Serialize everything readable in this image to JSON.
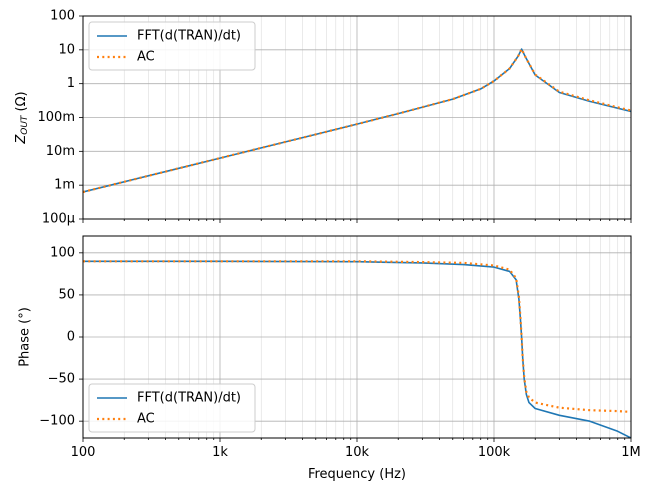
{
  "chart_data": [
    {
      "type": "line",
      "title": "",
      "xlabel": "",
      "ylabel_base": "Z",
      "ylabel_sub": "OUT",
      "ylabel_unit": " (Ω)",
      "xscale": "log",
      "yscale": "log",
      "xlim": [
        100,
        1000000
      ],
      "ylim": [
        0.0001,
        100
      ],
      "yticks": [
        0.0001,
        0.001,
        0.01,
        0.1,
        1,
        10,
        100
      ],
      "ytick_labels": [
        "100µ",
        "1m",
        "10m",
        "100m",
        "1",
        "10",
        "100"
      ],
      "grid": true,
      "legend_position": "upper-left",
      "series": [
        {
          "name": "FFT(d(TRAN)/dt)",
          "color": "#1f77b4",
          "style": "solid",
          "x": [
            100,
            200,
            500,
            1000,
            2000,
            5000,
            10000,
            20000,
            50000,
            80000,
            100000,
            130000,
            150000,
            159000,
            170000,
            200000,
            300000,
            500000,
            1000000
          ],
          "y": [
            0.00063,
            0.00126,
            0.00315,
            0.0063,
            0.0126,
            0.0316,
            0.064,
            0.13,
            0.35,
            0.7,
            1.2,
            2.8,
            6.5,
            10.5,
            6.0,
            1.8,
            0.55,
            0.3,
            0.15
          ]
        },
        {
          "name": "AC",
          "color": "#ff7f0e",
          "style": "dotted",
          "x": [
            100,
            200,
            500,
            1000,
            2000,
            5000,
            10000,
            20000,
            50000,
            80000,
            100000,
            130000,
            150000,
            159000,
            170000,
            200000,
            300000,
            500000,
            1000000
          ],
          "y": [
            0.00063,
            0.00126,
            0.00315,
            0.0063,
            0.0126,
            0.0316,
            0.064,
            0.13,
            0.35,
            0.7,
            1.2,
            2.8,
            6.5,
            10.5,
            6.0,
            1.85,
            0.58,
            0.32,
            0.16
          ]
        }
      ]
    },
    {
      "type": "line",
      "title": "",
      "xlabel": "Frequency (Hz)",
      "ylabel": "Phase (°)",
      "xscale": "log",
      "yscale": "linear",
      "xlim": [
        100,
        1000000
      ],
      "ylim": [
        -120,
        120
      ],
      "xticks": [
        100,
        1000,
        10000,
        100000,
        1000000
      ],
      "xtick_labels": [
        "100",
        "1k",
        "10k",
        "100k",
        "1M"
      ],
      "yticks": [
        -100,
        -50,
        0,
        50,
        100
      ],
      "ytick_labels": [
        "−100",
        "−50",
        "0",
        "50",
        "100"
      ],
      "grid": true,
      "legend_position": "lower-left",
      "series": [
        {
          "name": "FFT(d(TRAN)/dt)",
          "color": "#1f77b4",
          "style": "solid",
          "x": [
            100,
            1000,
            10000,
            30000,
            60000,
            100000,
            130000,
            145000,
            152000,
            156000,
            159000,
            162000,
            166000,
            172000,
            180000,
            200000,
            300000,
            500000,
            800000,
            1000000
          ],
          "y": [
            90,
            90,
            89.5,
            88,
            86,
            83,
            78,
            68,
            45,
            20,
            0,
            -25,
            -50,
            -68,
            -78,
            -85,
            -93,
            -100,
            -112,
            -120
          ]
        },
        {
          "name": "AC",
          "color": "#ff7f0e",
          "style": "dotted",
          "x": [
            100,
            1000,
            10000,
            30000,
            60000,
            100000,
            130000,
            145000,
            152000,
            156000,
            159000,
            162000,
            166000,
            172000,
            180000,
            200000,
            300000,
            500000,
            800000,
            1000000
          ],
          "y": [
            90,
            90,
            90,
            89,
            88,
            85,
            80,
            70,
            48,
            22,
            0,
            -25,
            -48,
            -65,
            -72,
            -78,
            -84,
            -87,
            -88,
            -89
          ]
        }
      ]
    }
  ]
}
